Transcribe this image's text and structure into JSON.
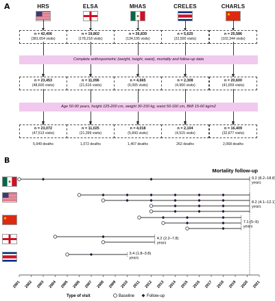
{
  "panel_a_label": "A",
  "panel_b_label": "B",
  "cohorts": [
    {
      "name": "HRS",
      "flag": "us-flag-icon",
      "n1": "n = 42,406",
      "v1": "(381,654 visits)",
      "n2": "n = 23,453",
      "v2": "(48,600 visits)",
      "n3": "n = 23,072",
      "v3": "(47,513 visits)",
      "deaths": "5,949 deaths"
    },
    {
      "name": "ELSA",
      "flag": "england-flag-icon",
      "n1": "n = 19,802",
      "v1": "(178,218 visits)",
      "n2": "n = 11,096",
      "v2": "(21,616 visits)",
      "n3": "n = 11,025",
      "v3": "(21,399 visits)",
      "deaths": "1,072 deaths"
    },
    {
      "name": "MHAS",
      "flag": "mexico-flag-icon",
      "n1": "n = 26,839",
      "v1": "(134,195 visits)",
      "n2": "n = 4,665",
      "v2": "(6,065 visits)",
      "n3": "n = 4,018",
      "v3": "(5,843 visits)",
      "deaths": "1,407 deaths"
    },
    {
      "name": "CRELES",
      "flag": "costa-rica-flag-icon",
      "n1": "n = 5,625",
      "v1": "(22,500 visits)",
      "n2": "n = 2,308",
      "v2": "(4,960 visits)",
      "n3": "n = 2,104",
      "v3": "(4,515 visits)",
      "deaths": "262 deaths"
    },
    {
      "name": "CHARLS",
      "flag": "china-flag-icon",
      "n1": "n = 25,586",
      "v1": "(102,344 visits)",
      "n2": "n = 20,600",
      "v2": "(41,659 visits)",
      "n3": "n = 16,409",
      "v3": "(32,877 visits)",
      "deaths": "2,068 deaths"
    }
  ],
  "band1": "Complete anthropometric (weight, height, waist), mortality and follow-up data",
  "band2": "Age 50-90 years, height 125-200 cm, weight 30-150 kg, waist 50-160 cm, BMI 15-60 kg/m2",
  "timeline": {
    "title": "Mortality follow-up",
    "x_ticks": [
      "2001",
      "2002",
      "2003",
      "2004",
      "2005",
      "2006",
      "2007",
      "2008",
      "2009",
      "2010",
      "2011",
      "2012",
      "2013",
      "2014",
      "2015",
      "2016",
      "2017",
      "2018",
      "2019",
      "2020",
      "2021"
    ],
    "x_start": 2001,
    "x_end": 2021,
    "rows": [
      {
        "flag": "mexico-flag-icon",
        "label": "9.2 (8.2–18.8)",
        "label2": "years",
        "lines": [
          {
            "baseline": 2001,
            "followups": [
              2003,
              2012
            ],
            "end": 2020.2
          }
        ]
      },
      {
        "flag": "us-flag-icon",
        "label": "8.2 (4.1–12.1)",
        "label2": "years",
        "lines": [
          {
            "baseline": 2006,
            "followups": [
              2008,
              2010,
              2012,
              2014,
              2016,
              2018
            ],
            "end": 2020.2
          },
          {
            "baseline": 2008,
            "followups": [
              2010,
              2012,
              2014,
              2016,
              2018
            ],
            "end": 2020.2
          },
          {
            "baseline": 2012,
            "followups": [
              2014,
              2016,
              2018
            ],
            "end": 2020.2
          },
          {
            "baseline": 2012,
            "followups": [
              2014,
              2016,
              2018
            ],
            "end": 2020.2
          }
        ]
      },
      {
        "flag": "china-flag-icon",
        "label": "7.1 (5–9)",
        "label2": "years",
        "lines": [
          {
            "baseline": 2011,
            "followups": [
              2013,
              2015,
              2018
            ],
            "end": 2019.5
          },
          {
            "baseline": 2013,
            "followups": [
              2015,
              2018
            ],
            "end": 2019.5
          },
          {
            "baseline": 2015,
            "followups": [
              2018
            ],
            "end": 2019.5
          }
        ]
      },
      {
        "flag": "england-flag-icon",
        "label": "4.2 (2.2–7.8)",
        "label2": "years",
        "lines": [
          {
            "baseline": 2004,
            "followups": [
              2008
            ],
            "end": 2012.3
          },
          {
            "baseline": 2008,
            "followups": [],
            "end": 2012.3
          }
        ]
      },
      {
        "flag": "costa-rica-flag-icon",
        "label": "3.4 (1.8–3.8)",
        "label2": "years",
        "lines": [
          {
            "baseline": 2005,
            "followups": [
              2007
            ],
            "end": 2010
          }
        ]
      }
    ],
    "legend_title": "Type of visit",
    "legend_baseline": "Baseline",
    "legend_followup": "Follow-up"
  }
}
